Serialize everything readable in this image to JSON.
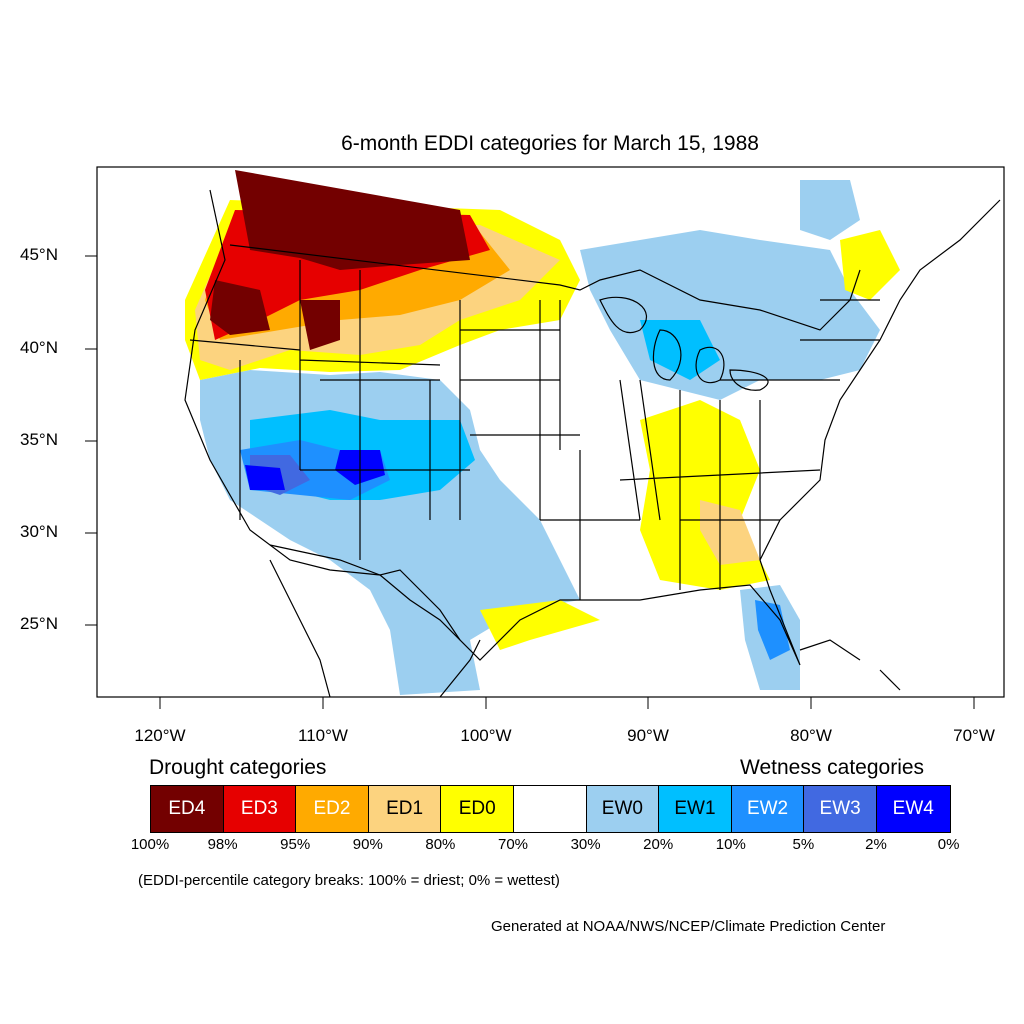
{
  "title": "6-month EDDI categories for March 15, 1988",
  "lat_labels": [
    "45°N",
    "40°N",
    "35°N",
    "30°N",
    "25°N"
  ],
  "lon_labels": [
    "120°W",
    "110°W",
    "100°W",
    "90°W",
    "80°W",
    "70°W"
  ],
  "legend": {
    "drought_heading": "Drought categories",
    "wetness_heading": "Wetness categories",
    "categories": [
      {
        "label": "ED4",
        "color": "#730000",
        "text_color": "#ffffff"
      },
      {
        "label": "ED3",
        "color": "#e60000",
        "text_color": "#ffffff"
      },
      {
        "label": "ED2",
        "color": "#ffaa00",
        "text_color": "#ffffff"
      },
      {
        "label": "ED1",
        "color": "#fcd37f",
        "text_color": "#000000"
      },
      {
        "label": "ED0",
        "color": "#ffff00",
        "text_color": "#000000"
      },
      {
        "label": "",
        "color": "#ffffff",
        "text_color": "#000000"
      },
      {
        "label": "EW0",
        "color": "#9ccff0",
        "text_color": "#000000"
      },
      {
        "label": "EW1",
        "color": "#00bfff",
        "text_color": "#000000"
      },
      {
        "label": "EW2",
        "color": "#1e90ff",
        "text_color": "#ffffff"
      },
      {
        "label": "EW3",
        "color": "#4169e1",
        "text_color": "#ffffff"
      },
      {
        "label": "EW4",
        "color": "#0000ff",
        "text_color": "#ffffff"
      }
    ],
    "breaks": [
      "100%",
      "98%",
      "95%",
      "90%",
      "80%",
      "70%",
      "30%",
      "20%",
      "10%",
      "5%",
      "2%",
      "0%"
    ]
  },
  "note": "(EDDI-percentile category breaks: 100% = driest; 0% = wettest)",
  "credit": "Generated at NOAA/NWS/NCEP/Climate Prediction Center"
}
